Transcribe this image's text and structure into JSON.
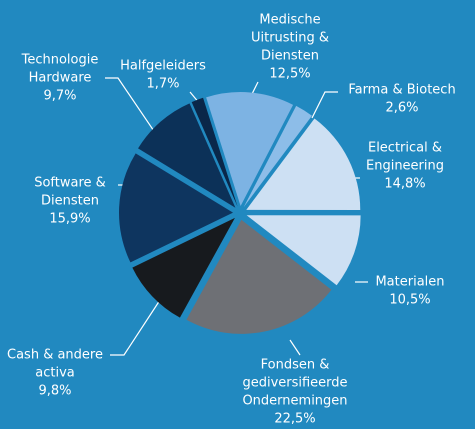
{
  "chart_data": {
    "type": "pie",
    "categories": [
      [
        "Medische",
        "Uitrusting &",
        "Diensten"
      ],
      [
        "Farma & Biotech"
      ],
      [
        "Electrical &",
        "Engineering"
      ],
      [
        "Materialen"
      ],
      [
        "Fondsen &",
        "gediversifieerde",
        "Ondernemingen"
      ],
      [
        "Cash & andere",
        "activa"
      ],
      [
        "Software &",
        "Diensten"
      ],
      [
        "Technologie",
        "Hardware"
      ],
      [
        "Halfgeleiders"
      ]
    ],
    "values": [
      12.5,
      2.6,
      14.8,
      10.5,
      22.5,
      9.8,
      15.9,
      9.7,
      1.7
    ],
    "value_labels": [
      "12,5%",
      "2,6%",
      "14,8%",
      "10,5%",
      "22,5%",
      "9,8%",
      "15,9%",
      "9,7%",
      "1,7%"
    ],
    "colors": [
      "#7db3e3",
      "#8dbde8",
      "#cde0f3",
      "#cde0f3",
      "#6e7075",
      "#171a1e",
      "#0e355f",
      "#0c3158",
      "#0a2749"
    ]
  }
}
